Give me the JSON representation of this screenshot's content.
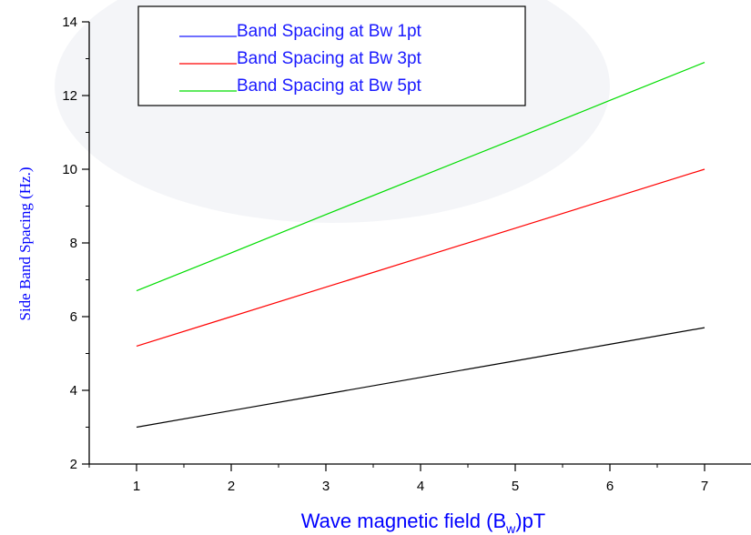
{
  "chart_data": {
    "type": "line",
    "x": [
      1,
      2,
      3,
      4,
      5,
      6,
      7
    ],
    "series": [
      {
        "name": "Band Spacing at Bw 1pt",
        "color": "#000000",
        "legend_color": "#1a1aff",
        "values": [
          3.0,
          3.45,
          3.9,
          4.35,
          4.8,
          5.25,
          5.7
        ]
      },
      {
        "name": "Band Spacing at Bw 3pt",
        "color": "#ff0000",
        "legend_color": "#ff0000",
        "values": [
          5.2,
          6.0,
          6.8,
          7.6,
          8.4,
          9.2,
          10.0
        ]
      },
      {
        "name": "Band Spacing at Bw 5pt",
        "color": "#00dd00",
        "legend_color": "#00dd00",
        "values": [
          6.7,
          7.73,
          8.77,
          9.8,
          10.83,
          11.87,
          12.9
        ]
      }
    ],
    "xlabel_main": "Wave magnetic field (B",
    "xlabel_sub": "w",
    "xlabel_tail": ")pT",
    "ylabel": "Side Band Spacing (Hz.)",
    "xlim": [
      0.5,
      7.5
    ],
    "ylim": [
      2,
      14
    ],
    "xticks": [
      1,
      2,
      3,
      4,
      5,
      6,
      7
    ],
    "yticks": [
      2,
      4,
      6,
      8,
      10,
      12,
      14
    ],
    "label_color": "#0000ff",
    "legend_text_color": "#1a1aff",
    "legend_position": "top-center",
    "grid": false
  }
}
